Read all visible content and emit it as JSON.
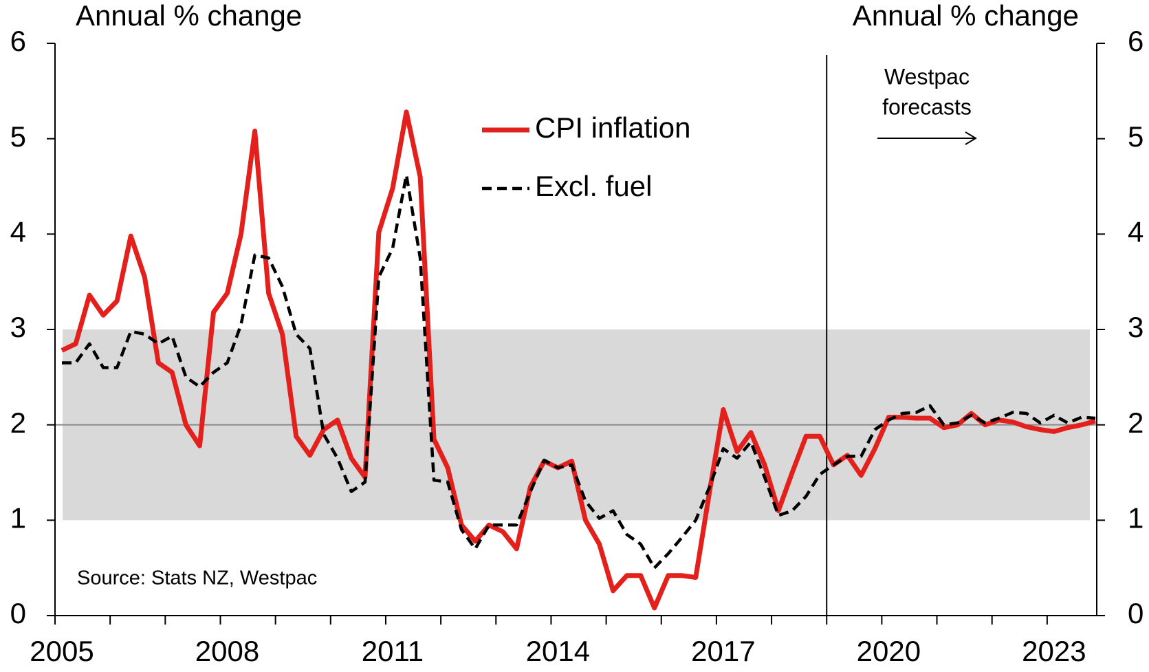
{
  "chart_data": {
    "type": "line",
    "title_left": "Annual % change",
    "title_right": "Annual % change",
    "source": "Source: Stats NZ, Westpac",
    "annotation": [
      "Westpac",
      "forecasts"
    ],
    "x": [
      2005.125,
      2005.375,
      2005.625,
      2005.875,
      2006.125,
      2006.375,
      2006.625,
      2006.875,
      2007.125,
      2007.375,
      2007.625,
      2007.875,
      2008.125,
      2008.375,
      2008.625,
      2008.875,
      2009.125,
      2009.375,
      2009.625,
      2009.875,
      2010.125,
      2010.375,
      2010.625,
      2010.875,
      2011.125,
      2011.375,
      2011.625,
      2011.875,
      2012.125,
      2012.375,
      2012.625,
      2012.875,
      2013.125,
      2013.375,
      2013.625,
      2013.875,
      2014.125,
      2014.375,
      2014.625,
      2014.875,
      2015.125,
      2015.375,
      2015.625,
      2015.875,
      2016.125,
      2016.375,
      2016.625,
      2016.875,
      2017.125,
      2017.375,
      2017.625,
      2017.875,
      2018.125,
      2018.375,
      2018.625,
      2018.875,
      2019.125,
      2019.375,
      2019.625,
      2019.875,
      2020.125,
      2020.375,
      2020.625,
      2020.875,
      2021.125,
      2021.375,
      2021.625,
      2021.875,
      2022.125,
      2022.375,
      2022.625,
      2022.875,
      2023.125,
      2023.375,
      2023.625,
      2023.875
    ],
    "series": [
      {
        "name": "CPI inflation",
        "color": "#e3201b",
        "dashed": false,
        "values": [
          2.78,
          2.85,
          3.36,
          3.15,
          3.3,
          3.98,
          3.55,
          2.65,
          2.55,
          2.0,
          1.78,
          3.18,
          3.38,
          4.0,
          5.08,
          3.38,
          2.95,
          1.88,
          1.68,
          1.95,
          2.05,
          1.65,
          1.45,
          4.02,
          4.48,
          5.28,
          4.6,
          1.85,
          1.55,
          0.95,
          0.78,
          0.95,
          0.88,
          0.7,
          1.35,
          1.62,
          1.55,
          1.62,
          1.0,
          0.75,
          0.26,
          0.42,
          0.42,
          0.08,
          0.42,
          0.42,
          0.4,
          1.3,
          2.16,
          1.72,
          1.92,
          1.58,
          1.1,
          1.5,
          1.88,
          1.88,
          1.58,
          1.68,
          1.47,
          1.75,
          2.08,
          2.08,
          2.07,
          2.07,
          1.97,
          2.0,
          2.12,
          2.0,
          2.05,
          2.03,
          1.98,
          1.95,
          1.93,
          1.97,
          2.0,
          2.04
        ]
      },
      {
        "name": "Excl. fuel",
        "color": "#000000",
        "dashed": true,
        "values": [
          2.65,
          2.65,
          2.85,
          2.6,
          2.6,
          2.98,
          2.95,
          2.85,
          2.93,
          2.5,
          2.4,
          2.55,
          2.65,
          3.05,
          3.78,
          3.75,
          3.45,
          2.95,
          2.8,
          1.9,
          1.65,
          1.3,
          1.4,
          3.55,
          3.85,
          4.62,
          3.75,
          1.42,
          1.4,
          0.9,
          0.7,
          0.95,
          0.95,
          0.95,
          1.3,
          1.63,
          1.55,
          1.58,
          1.2,
          1.02,
          1.1,
          0.85,
          0.75,
          0.5,
          0.65,
          0.82,
          1.0,
          1.35,
          1.75,
          1.65,
          1.82,
          1.45,
          1.05,
          1.1,
          1.25,
          1.48,
          1.58,
          1.67,
          1.67,
          1.95,
          2.05,
          2.12,
          2.13,
          2.2,
          2.0,
          2.02,
          2.1,
          2.02,
          2.07,
          2.13,
          2.12,
          2.02,
          2.1,
          2.02,
          2.08,
          2.07
        ]
      }
    ],
    "xlim": [
      2005,
      2023.9
    ],
    "xticks": [
      2005,
      2008,
      2011,
      2014,
      2017,
      2020,
      2023
    ],
    "xminorticks": [
      2006,
      2007,
      2009,
      2010,
      2012,
      2013,
      2015,
      2016,
      2018,
      2019,
      2021,
      2022
    ],
    "ylim": [
      0,
      6
    ],
    "yticks": [
      0,
      1,
      2,
      3,
      4,
      5,
      6
    ],
    "y2lim": [
      0,
      6
    ],
    "y2ticks": [
      0,
      1,
      2,
      3,
      4,
      5,
      6
    ],
    "shaded_band": [
      1,
      3
    ],
    "band_color": "#d9d9d9",
    "reference_line": 2,
    "forecast_start": 2019,
    "grid": false
  }
}
